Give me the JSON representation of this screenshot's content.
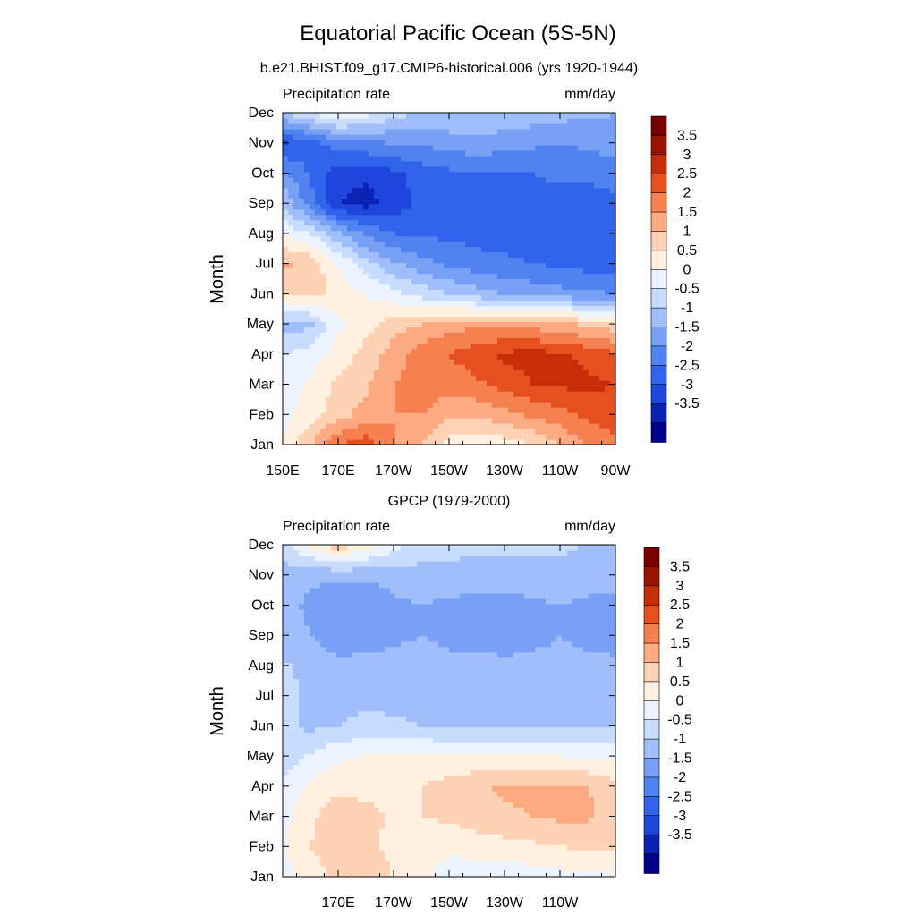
{
  "page": {
    "title": "Equatorial Pacific Ocean (5S-5N)"
  },
  "palette": [
    "#00008a",
    "#0a23b4",
    "#1e46dc",
    "#3264eb",
    "#5082f0",
    "#78a0f5",
    "#a0bef9",
    "#c8dcfd",
    "#eaf3ff",
    "#fff0e0",
    "#fdd2b4",
    "#fbaa82",
    "#f58050",
    "#e6501e",
    "#c82d0a",
    "#9b1400",
    "#780000"
  ],
  "colorbar_labels": [
    "3.5",
    "3",
    "2.5",
    "2",
    "1.5",
    "1",
    "0.5",
    "0",
    "-0.5",
    "-1",
    "-1.5",
    "-2",
    "-2.5",
    "-3",
    "-3.5"
  ],
  "chart_data": [
    {
      "type": "heatmap",
      "subtitle": "b.e21.BHIST.f09_g17.CMIP6-historical.006 (yrs 1920-1944)",
      "left_label": "Precipitation rate",
      "right_label": "mm/day",
      "ylabel": "Month",
      "x_ticklabels": [
        "150E",
        "170E",
        "170W",
        "150W",
        "130W",
        "110W",
        "90W"
      ],
      "y_ticklabels": [
        "Jan",
        "Feb",
        "Mar",
        "Apr",
        "May",
        "Jun",
        "Jul",
        "Aug",
        "Sep",
        "Oct",
        "Nov",
        "Dec"
      ],
      "x_range": [
        "150E",
        "90W"
      ],
      "colorbar_range": [
        -4,
        4
      ],
      "contour_interval": 0.5,
      "x_columns": [
        "150E",
        "160E",
        "170E",
        "180",
        "170W",
        "160W",
        "150W",
        "140W",
        "130W",
        "120W",
        "110W",
        "100W",
        "90W"
      ],
      "values": [
        [
          0.5,
          1.5,
          2.5,
          2.8,
          2.0,
          1.5,
          0.8,
          0.5,
          0.7,
          1.0,
          1.5,
          2.0,
          2.4
        ],
        [
          0.3,
          0.8,
          1.3,
          1.7,
          2.0,
          2.0,
          1.6,
          1.6,
          1.8,
          2.1,
          2.3,
          2.6,
          2.8
        ],
        [
          0.2,
          0.6,
          1.1,
          1.4,
          2.0,
          2.3,
          2.2,
          2.4,
          2.7,
          3.0,
          3.1,
          3.1,
          3.0
        ],
        [
          0.0,
          0.2,
          0.7,
          1.2,
          1.7,
          2.3,
          2.5,
          2.8,
          3.1,
          3.2,
          3.1,
          2.9,
          2.6
        ],
        [
          -0.8,
          -0.6,
          0.4,
          0.8,
          1.3,
          1.5,
          1.8,
          1.9,
          1.9,
          1.8,
          1.6,
          1.4,
          1.2
        ],
        [
          1.0,
          1.2,
          0.8,
          0.5,
          0.2,
          -0.2,
          -0.5,
          -0.8,
          -1.0,
          -1.2,
          -1.3,
          -1.4,
          -1.5
        ],
        [
          1.6,
          1.4,
          0.5,
          -0.3,
          -0.9,
          -1.3,
          -1.6,
          -1.8,
          -1.9,
          -2.0,
          -2.1,
          -2.2,
          -2.2
        ],
        [
          0.5,
          0.0,
          -0.9,
          -1.6,
          -2.0,
          -2.1,
          -2.1,
          -2.2,
          -2.2,
          -2.3,
          -2.3,
          -2.3,
          -2.3
        ],
        [
          -0.6,
          -1.8,
          -3.0,
          -3.2,
          -2.8,
          -2.4,
          -2.2,
          -2.2,
          -2.2,
          -2.2,
          -2.2,
          -2.2,
          -2.1
        ],
        [
          -1.3,
          -2.1,
          -2.8,
          -2.9,
          -2.6,
          -2.3,
          -2.1,
          -2.0,
          -2.0,
          -2.0,
          -1.9,
          -1.9,
          -1.8
        ],
        [
          -2.6,
          -2.2,
          -1.8,
          -1.6,
          -1.5,
          -1.4,
          -1.3,
          -1.2,
          -1.3,
          -1.4,
          -1.5,
          -1.4,
          -1.2
        ],
        [
          -0.5,
          0.0,
          0.6,
          0.2,
          -0.3,
          -0.5,
          -0.5,
          -0.5,
          -0.6,
          -0.7,
          -0.8,
          -0.9,
          -1.0
        ]
      ]
    },
    {
      "type": "heatmap",
      "subtitle": "GPCP (1979-2000)",
      "left_label": "Precipitation rate",
      "right_label": "mm/day",
      "ylabel": "Month",
      "x_ticklabels": [
        "170E",
        "170W",
        "150W",
        "130W",
        "110W"
      ],
      "y_ticklabels": [
        "Jan",
        "Feb",
        "Mar",
        "Apr",
        "May",
        "Jun",
        "Jul",
        "Aug",
        "Sep",
        "Oct",
        "Nov",
        "Dec"
      ],
      "colorbar_range": [
        -4,
        4
      ],
      "contour_interval": 0.5,
      "x_columns": [
        "150E",
        "160E",
        "170E",
        "180",
        "170W",
        "160W",
        "150W",
        "140W",
        "130W",
        "120W",
        "110W",
        "100W",
        "90W"
      ],
      "values": [
        [
          0.3,
          0.7,
          1.2,
          1.4,
          1.0,
          0.6,
          0.3,
          0.2,
          0.2,
          0.2,
          0.3,
          0.4,
          0.4
        ],
        [
          0.4,
          1.0,
          1.4,
          1.2,
          0.8,
          0.7,
          0.6,
          0.7,
          0.8,
          0.9,
          1.0,
          1.1,
          1.1
        ],
        [
          0.3,
          0.9,
          1.3,
          1.2,
          0.9,
          1.0,
          1.1,
          1.3,
          1.4,
          1.5,
          1.6,
          1.6,
          1.3
        ],
        [
          0.2,
          0.6,
          0.9,
          0.8,
          0.9,
          1.0,
          1.2,
          1.4,
          1.6,
          1.6,
          1.6,
          1.5,
          1.2
        ],
        [
          -0.4,
          0.1,
          0.4,
          0.5,
          0.6,
          0.6,
          0.6,
          0.6,
          0.6,
          0.5,
          0.5,
          0.4,
          0.4
        ],
        [
          -0.4,
          -0.6,
          -0.5,
          -0.3,
          -0.4,
          -0.5,
          -0.6,
          -0.6,
          -0.6,
          -0.6,
          -0.6,
          -0.6,
          -0.6
        ],
        [
          -0.3,
          -0.6,
          -0.7,
          -0.7,
          -0.7,
          -0.7,
          -0.7,
          -0.8,
          -0.8,
          -0.8,
          -0.8,
          -0.8,
          -0.8
        ],
        [
          -0.4,
          -0.7,
          -0.8,
          -0.8,
          -0.8,
          -0.8,
          -0.9,
          -0.9,
          -0.9,
          -0.9,
          -0.9,
          -0.9,
          -0.9
        ],
        [
          -0.8,
          -1.0,
          -1.4,
          -1.3,
          -1.1,
          -1.0,
          -1.1,
          -1.1,
          -1.2,
          -1.1,
          -1.0,
          -1.1,
          -1.2
        ],
        [
          -0.8,
          -1.1,
          -1.4,
          -1.5,
          -1.1,
          -1.0,
          -1.1,
          -1.2,
          -1.2,
          -1.1,
          -1.0,
          -1.1,
          -1.1
        ],
        [
          -0.7,
          -0.9,
          -0.9,
          -0.9,
          -0.8,
          -0.7,
          -0.7,
          -0.7,
          -0.7,
          -0.7,
          -0.7,
          -0.8,
          -0.9
        ],
        [
          -0.3,
          0.6,
          1.3,
          0.8,
          0.2,
          -0.2,
          -0.3,
          -0.4,
          -0.4,
          -0.4,
          -0.4,
          -0.5,
          -0.5
        ]
      ]
    }
  ]
}
